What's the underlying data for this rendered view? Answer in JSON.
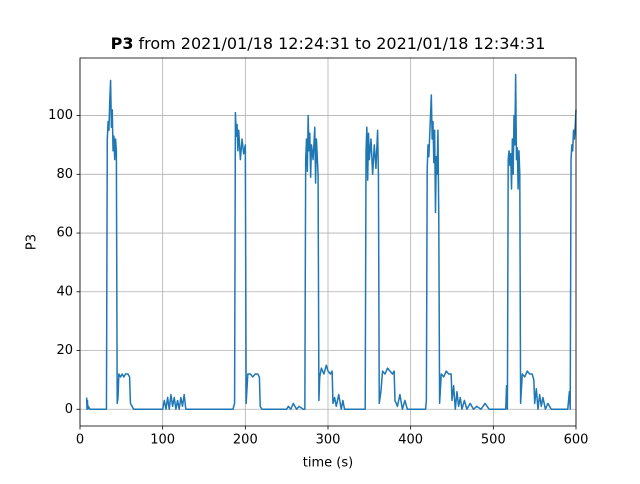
{
  "chart_data": {
    "type": "line",
    "title": {
      "name": "P3",
      "text": "from 2021/01/18 12:24:31 to 2021/01/18 12:34:31"
    },
    "xlabel": "time (s)",
    "ylabel": "P3",
    "color": "#1f77b4",
    "grid": true,
    "xlim": [
      0,
      600
    ],
    "xticks": [
      0,
      100,
      200,
      300,
      400,
      500,
      600
    ],
    "ylim": [
      -5.7,
      119.6
    ],
    "yticks": [
      0,
      20,
      40,
      60,
      80,
      100
    ],
    "x": [
      8,
      8.5,
      9,
      9.5,
      10,
      12,
      20,
      30,
      32,
      33,
      34,
      35,
      36,
      37,
      38,
      39,
      40,
      41,
      42,
      43,
      44,
      45,
      46,
      47,
      49,
      51,
      53,
      55,
      58,
      60,
      61,
      63,
      65,
      70,
      100,
      102,
      104,
      106,
      108,
      110,
      112,
      114,
      116,
      118,
      120,
      122,
      124,
      126,
      128,
      130,
      185,
      187,
      188,
      189,
      190,
      191,
      192,
      194,
      196,
      198,
      200,
      201,
      203,
      206,
      209,
      212,
      215,
      217,
      218,
      220,
      250,
      252,
      255,
      258,
      262,
      265,
      270,
      272,
      273,
      274,
      275,
      276,
      277,
      278,
      279,
      280,
      282,
      284,
      285,
      286,
      288,
      289,
      290,
      292,
      295,
      298,
      300,
      303,
      305,
      306,
      308,
      310,
      313,
      316,
      318,
      320,
      345,
      346,
      347,
      348,
      349,
      350,
      352,
      354,
      356,
      358,
      360,
      361,
      362,
      364,
      366,
      369,
      372,
      375,
      378,
      380,
      381,
      384,
      387,
      390,
      393,
      396,
      400,
      418,
      419,
      420,
      421,
      422,
      424,
      425,
      426,
      427,
      428,
      429,
      430,
      431,
      432,
      433,
      434,
      435,
      437,
      440,
      443,
      446,
      449,
      450,
      452,
      454,
      456,
      458,
      460,
      462,
      465,
      468,
      472,
      476,
      480,
      485,
      490,
      495,
      500,
      515,
      516,
      517,
      518,
      519,
      520,
      521,
      522,
      523,
      524,
      525,
      526,
      527,
      528,
      529,
      530,
      531,
      532,
      533,
      535,
      538,
      541,
      544,
      547,
      549,
      550,
      552,
      554,
      556,
      558,
      560,
      563,
      566,
      570,
      590,
      592,
      593,
      594,
      595,
      596,
      597,
      598,
      599,
      600
    ],
    "values": [
      4,
      0,
      3,
      0,
      1,
      0,
      0,
      0,
      0,
      92,
      98,
      95,
      105,
      112,
      96,
      102,
      88,
      93,
      85,
      92,
      88,
      2,
      4,
      12,
      11,
      12,
      11,
      12,
      12,
      11,
      2,
      1,
      0,
      0,
      0,
      3,
      0,
      4,
      0,
      5,
      1,
      4,
      0,
      3,
      0,
      4,
      1,
      5,
      0,
      0,
      0,
      2,
      101,
      93,
      97,
      88,
      95,
      85,
      92,
      87,
      90,
      2,
      12,
      12,
      11,
      12,
      12,
      11,
      1,
      0,
      0,
      1,
      0,
      2,
      0,
      1,
      0,
      0,
      85,
      92,
      81,
      100,
      88,
      94,
      79,
      90,
      85,
      96,
      77,
      92,
      80,
      3,
      11,
      14,
      12,
      15,
      13,
      12,
      13,
      2,
      4,
      1,
      5,
      0,
      3,
      0,
      0,
      88,
      96,
      78,
      94,
      85,
      92,
      80,
      90,
      82,
      95,
      80,
      2,
      6,
      13,
      12,
      14,
      13,
      12,
      13,
      3,
      1,
      5,
      0,
      3,
      0,
      0,
      0,
      3,
      82,
      90,
      86,
      100,
      107,
      92,
      98,
      84,
      95,
      67,
      86,
      80,
      95,
      65,
      2,
      12,
      11,
      13,
      12,
      12,
      3,
      8,
      0,
      6,
      1,
      4,
      0,
      3,
      0,
      2,
      0,
      1,
      0,
      2,
      0,
      0,
      0,
      8,
      0,
      85,
      88,
      83,
      87,
      75,
      92,
      80,
      100,
      90,
      114,
      85,
      89,
      75,
      88,
      80,
      2,
      12,
      11,
      13,
      12,
      12,
      10,
      2,
      7,
      0,
      5,
      1,
      4,
      0,
      2,
      0,
      0,
      6,
      0,
      85,
      90,
      88,
      95,
      92,
      96,
      102
    ]
  }
}
